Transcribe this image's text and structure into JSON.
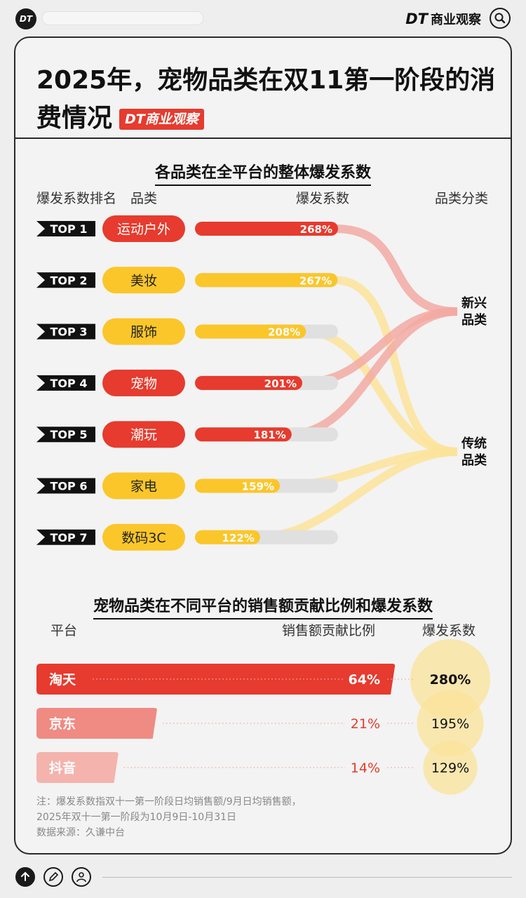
{
  "app": {
    "logo_text": "DT",
    "brand_logo": "DT",
    "brand_name": "商业观察"
  },
  "card": {
    "title": "2025年，宠物品类在双11第一阶段的消费情况",
    "badge_logo": "DT",
    "badge_text": "商业观察"
  },
  "section1": {
    "title": "各品类在全平台的整体爆发系数",
    "headers": {
      "rank": "爆发系数排名",
      "category": "品类",
      "coef": "爆发系数",
      "group": "品类分类"
    }
  },
  "section2": {
    "title": "宠物品类在不同平台的销售额贡献比例和爆发系数",
    "headers": {
      "platform": "平台",
      "share": "销售额贡献比例",
      "coef": "爆发系数"
    }
  },
  "note": {
    "line1": "注：爆发系数指双十一第一阶段日均销售额/9月日均销售额，",
    "line2": "2025年双十一第一阶段为10月9日-10月31日",
    "line3": "数据来源：久谦中台"
  },
  "colors": {
    "red": "#e63b2e",
    "yellow": "#fbc62a",
    "track": "#e0e0e0",
    "pink_flow": "#f2a9a2",
    "yellow_flow": "#fbe39a"
  },
  "chart_data": [
    {
      "type": "bar",
      "title": "各品类在全平台的整体爆发系数",
      "categories": [
        "运动户外",
        "美妆",
        "服饰",
        "宠物",
        "潮玩",
        "家电",
        "数码3C"
      ],
      "ranks": [
        "TOP 1",
        "TOP 2",
        "TOP 3",
        "TOP 4",
        "TOP 5",
        "TOP 6",
        "TOP 7"
      ],
      "values": [
        268,
        267,
        208,
        201,
        181,
        159,
        122
      ],
      "value_labels": [
        "268%",
        "267%",
        "208%",
        "201%",
        "181%",
        "159%",
        "122%"
      ],
      "groups": [
        "新兴品类",
        "传统品类",
        "传统品类",
        "新兴品类",
        "新兴品类",
        "传统品类",
        "传统品类"
      ],
      "group_labels": [
        {
          "name": "新兴品类",
          "l1": "新兴",
          "l2": "品类"
        },
        {
          "name": "传统品类",
          "l1": "传统",
          "l2": "品类"
        }
      ],
      "xlim": [
        0,
        268
      ],
      "unit": "%"
    },
    {
      "type": "bar",
      "title": "宠物品类在不同平台的销售额贡献比例和爆发系数",
      "categories": [
        "淘天",
        "京东",
        "抖音"
      ],
      "share_values": [
        64,
        21,
        14
      ],
      "share_labels": [
        "64%",
        "21%",
        "14%"
      ],
      "coef_values": [
        280,
        195,
        129
      ],
      "coef_labels": [
        "280%",
        "195%",
        "129%"
      ],
      "unit": "%"
    }
  ]
}
